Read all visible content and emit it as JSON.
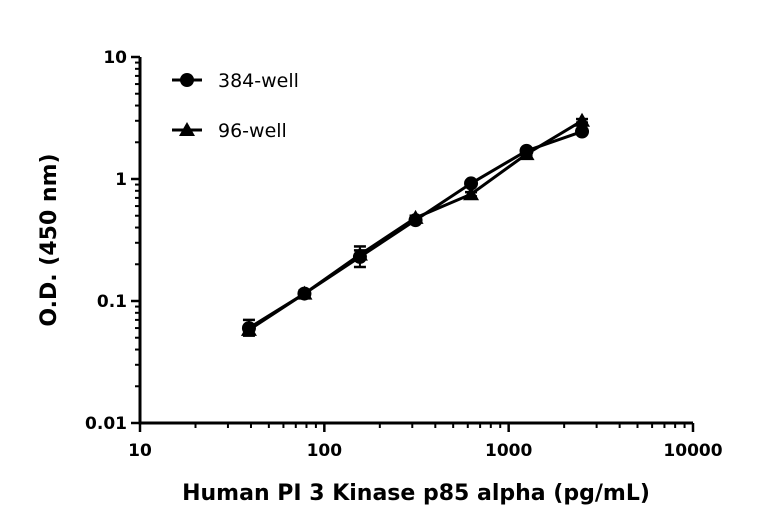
{
  "chart_data": {
    "type": "line",
    "title": "",
    "xlabel": "Human PI 3 Kinase p85 alpha (pg/mL)",
    "ylabel": "O.D. (450 nm)",
    "xscale": "log",
    "yscale": "log",
    "xlim": [
      10,
      10000
    ],
    "ylim": [
      0.01,
      10
    ],
    "xticks": [
      "10",
      "100",
      "1000",
      "10000"
    ],
    "yticks": [
      "0.01",
      "0.1",
      "1",
      "10"
    ],
    "grid": false,
    "legend_position": "top-left",
    "x": [
      39,
      78,
      156,
      312.5,
      625,
      1250,
      2500
    ],
    "series": [
      {
        "name": "384-well",
        "marker": "circle",
        "color": "#000000",
        "values": [
          0.06,
          0.115,
          0.23,
          0.46,
          0.92,
          1.7,
          2.45
        ],
        "error_low": [
          0.052,
          0.108,
          0.19,
          0.44,
          0.88,
          1.62,
          2.35
        ],
        "error_high": [
          0.07,
          0.122,
          0.28,
          0.48,
          0.96,
          1.78,
          2.55
        ]
      },
      {
        "name": "96-well",
        "marker": "triangle",
        "color": "#000000",
        "values": [
          0.058,
          0.115,
          0.24,
          0.48,
          0.75,
          1.6,
          3.0
        ],
        "error_low": [
          0.054,
          0.11,
          0.22,
          0.46,
          0.72,
          1.55,
          2.9
        ],
        "error_high": [
          0.062,
          0.12,
          0.26,
          0.5,
          0.78,
          1.65,
          3.1
        ]
      }
    ]
  }
}
